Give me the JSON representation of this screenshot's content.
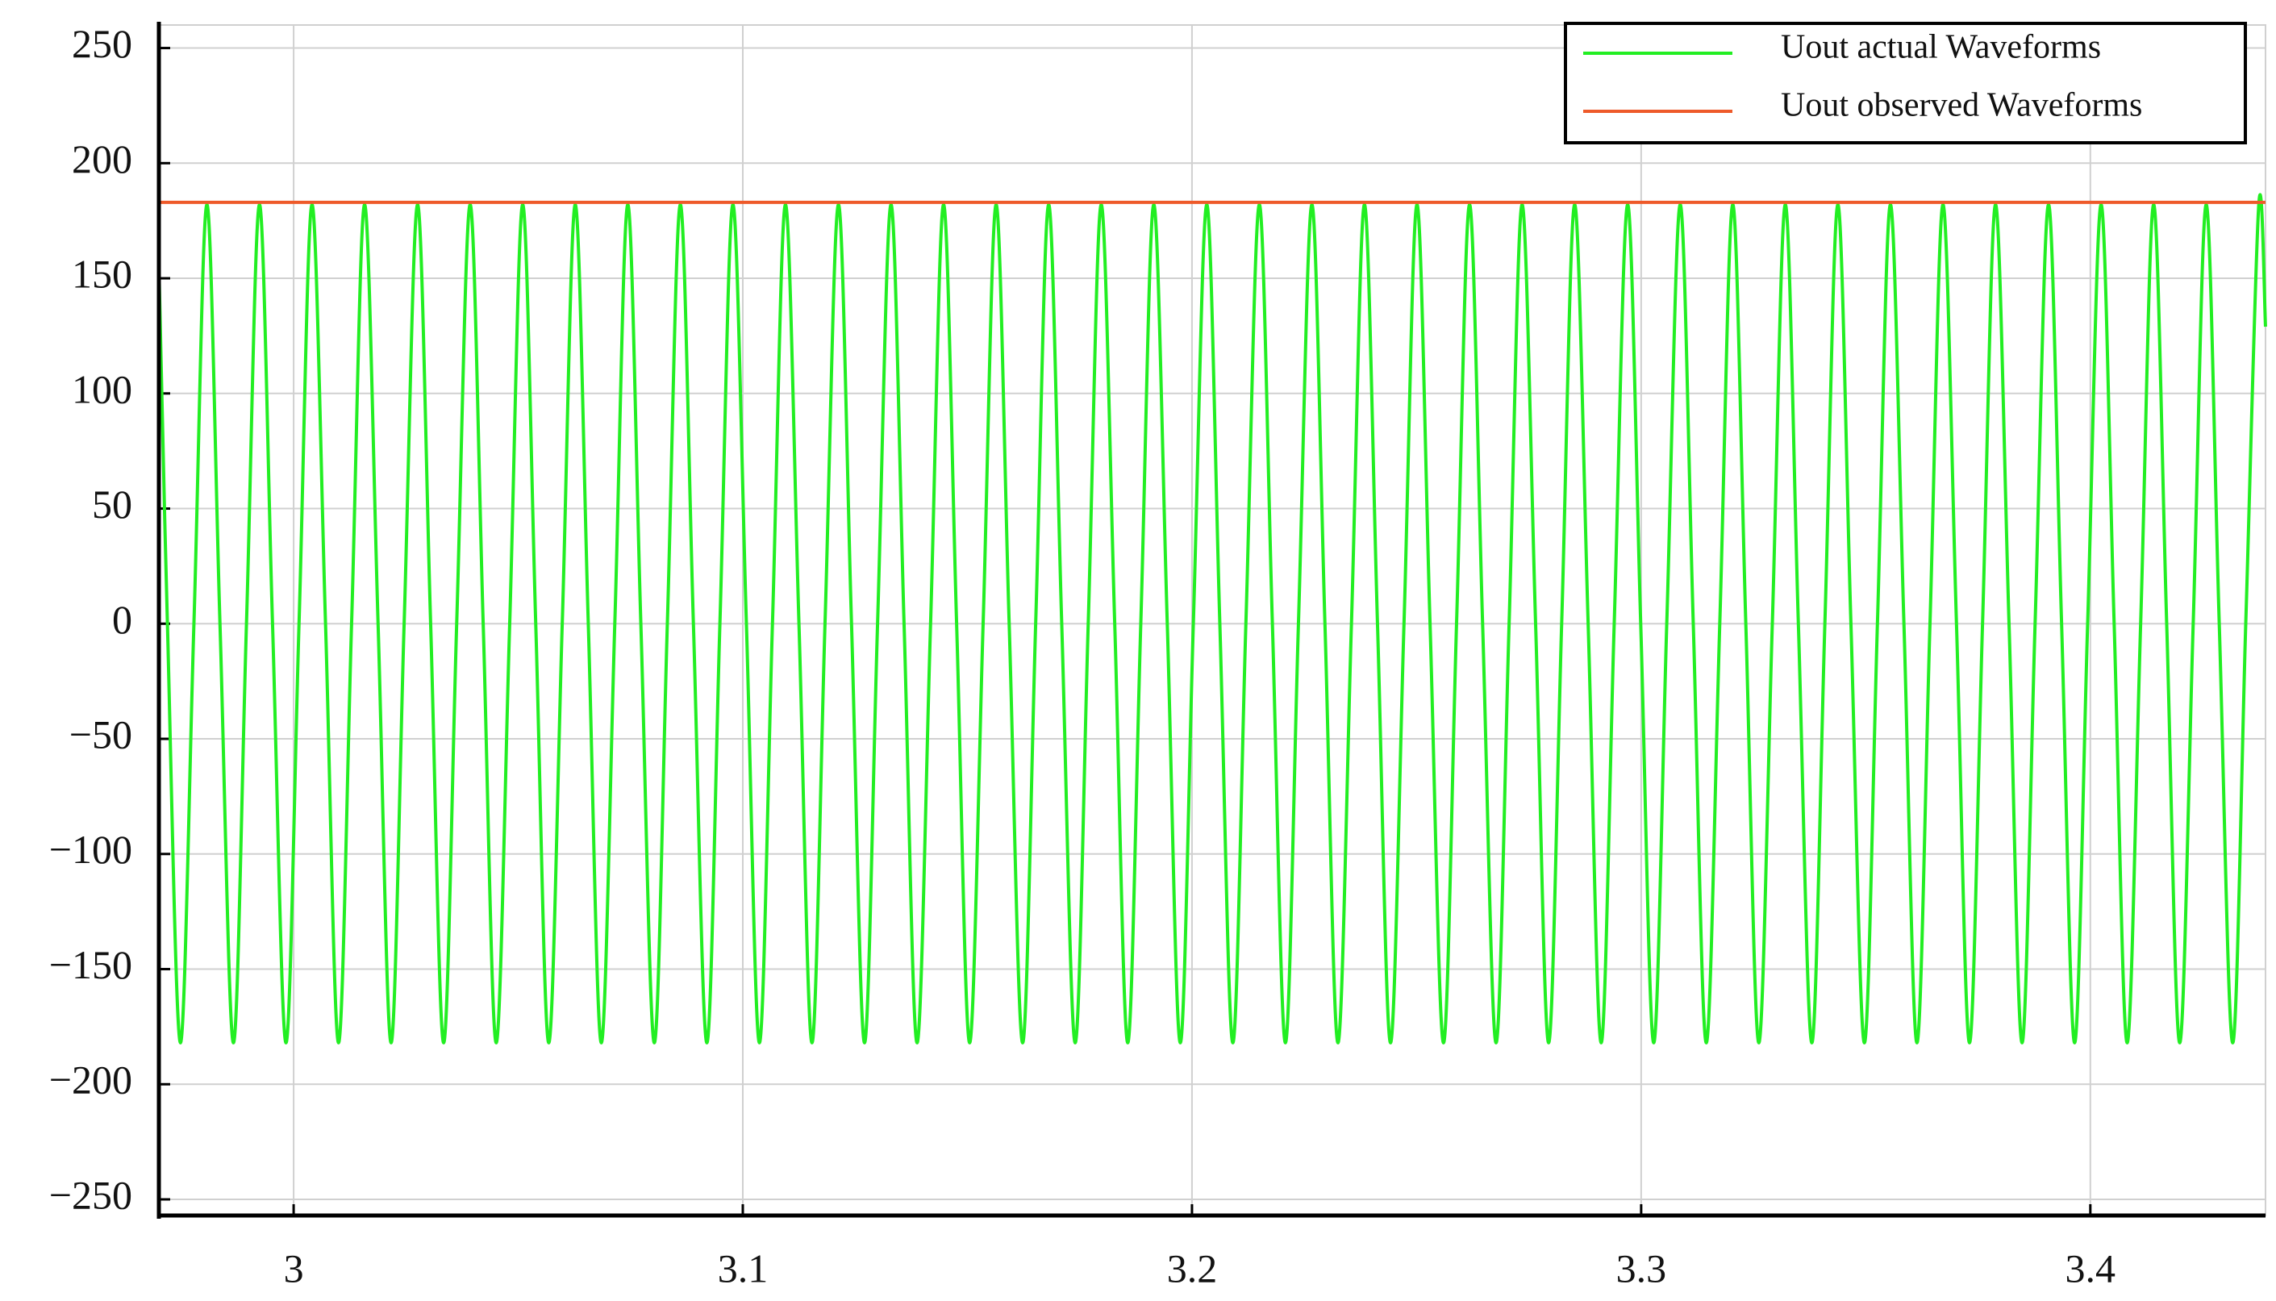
{
  "chart_data": {
    "type": "line",
    "x_series": null,
    "xlim": [
      2.97,
      3.439
    ],
    "ylim": [
      -257,
      260
    ],
    "xticks": [
      3,
      3.1,
      3.2,
      3.3,
      3.4
    ],
    "yticks": [
      {
        "value": -250,
        "label": "−250"
      },
      {
        "value": -200,
        "label": "−200"
      },
      {
        "value": -150,
        "label": "−150"
      },
      {
        "value": -100,
        "label": "−100"
      },
      {
        "value": -50,
        "label": "−50"
      },
      0,
      50,
      100,
      150,
      200,
      250
    ],
    "grid": true,
    "legend": "upper right",
    "series": [
      {
        "name": "Uout actual Waveforms",
        "color": "#22ee22",
        "x": [
          2.97,
          2.9719,
          2.9748,
          2.9778,
          2.9807,
          2.9836,
          2.9866,
          2.9895,
          2.9924,
          2.9953,
          2.9983,
          3.0012,
          3.0041,
          3.0071,
          3.01,
          3.0129,
          3.0158,
          3.0188,
          3.0217,
          3.0246,
          3.0276,
          3.0305,
          3.0334,
          3.0363,
          3.0393,
          3.0422,
          3.0451,
          3.0481,
          3.051,
          3.0539,
          3.0568,
          3.0598,
          3.0627,
          3.0656,
          3.0685,
          3.0715,
          3.0744,
          3.0773,
          3.0803,
          3.0832,
          3.0861,
          3.089,
          3.092,
          3.0949,
          3.0978,
          3.1008,
          3.1037,
          3.1066,
          3.1095,
          3.1125,
          3.1154,
          3.1183,
          3.1213,
          3.1242,
          3.1271,
          3.13,
          3.133,
          3.1359,
          3.1388,
          3.1418,
          3.1447,
          3.1476,
          3.1505,
          3.1535,
          3.1564,
          3.1593,
          3.1623,
          3.1652,
          3.1681,
          3.171,
          3.174,
          3.1769,
          3.1798,
          3.1828,
          3.1857,
          3.1886,
          3.1915,
          3.1945,
          3.1974,
          3.2003,
          3.2033,
          3.2062,
          3.2091,
          3.212,
          3.215,
          3.2179,
          3.2208,
          3.2237,
          3.2267,
          3.2296,
          3.2325,
          3.2355,
          3.2384,
          3.2413,
          3.2442,
          3.2472,
          3.2501,
          3.253,
          3.256,
          3.2589,
          3.2618,
          3.2647,
          3.2677,
          3.2706,
          3.2735,
          3.2765,
          3.2794,
          3.2823,
          3.2852,
          3.2882,
          3.2911,
          3.294,
          3.297,
          3.2999,
          3.3028,
          3.3057,
          3.3087,
          3.3116,
          3.3145,
          3.3175,
          3.3204,
          3.3233,
          3.3262,
          3.3292,
          3.3321,
          3.335,
          3.338,
          3.3409,
          3.3438,
          3.3467,
          3.3497,
          3.3526,
          3.3555,
          3.3585,
          3.3614,
          3.3643,
          3.3672,
          3.3702,
          3.3731,
          3.376,
          3.3789,
          3.3819,
          3.3848,
          3.3877,
          3.3907,
          3.3936,
          3.3965,
          3.3994,
          3.4024,
          3.4053,
          3.4082,
          3.4112,
          3.4141,
          3.417,
          3.4199,
          3.4229,
          3.4258,
          3.4287,
          3.4317,
          3.4346,
          3.4375,
          3.439
        ],
        "values": [
          156,
          0,
          -182,
          0,
          182,
          0,
          -182,
          0,
          182,
          0,
          -182,
          0,
          182,
          0,
          -182,
          0,
          182,
          0,
          -182,
          0,
          182,
          0,
          -182,
          0,
          182,
          0,
          -182,
          0,
          182,
          0,
          -182,
          0,
          182,
          0,
          -182,
          0,
          182,
          0,
          -182,
          0,
          182,
          0,
          -182,
          0,
          182,
          0,
          -182,
          0,
          182,
          0,
          -182,
          0,
          182,
          0,
          -182,
          0,
          182,
          0,
          -182,
          0,
          182,
          0,
          -182,
          0,
          182,
          0,
          -182,
          0,
          182,
          0,
          -182,
          0,
          182,
          0,
          -182,
          0,
          182,
          0,
          -182,
          0,
          182,
          0,
          -182,
          0,
          182,
          0,
          -182,
          0,
          182,
          0,
          -182,
          0,
          182,
          0,
          -182,
          0,
          182,
          0,
          -182,
          0,
          182,
          0,
          -182,
          0,
          182,
          0,
          -182,
          0,
          182,
          0,
          -182,
          0,
          182,
          0,
          -182,
          0,
          182,
          0,
          -182,
          0,
          182,
          0,
          -182,
          0,
          182,
          0,
          -182,
          0,
          182,
          0,
          -182,
          0,
          182,
          0,
          -182,
          0,
          182,
          0,
          -182,
          0,
          182,
          0,
          -182,
          0,
          182,
          0,
          -182,
          0,
          182,
          0,
          -182,
          0,
          182,
          0,
          -182,
          0,
          182,
          0,
          -182,
          0,
          182,
          129
        ]
      },
      {
        "name": "Uout observed Waveforms",
        "color": "#ee5a2a",
        "x": [
          2.97,
          3.439
        ],
        "values": [
          183,
          183
        ]
      }
    ]
  }
}
